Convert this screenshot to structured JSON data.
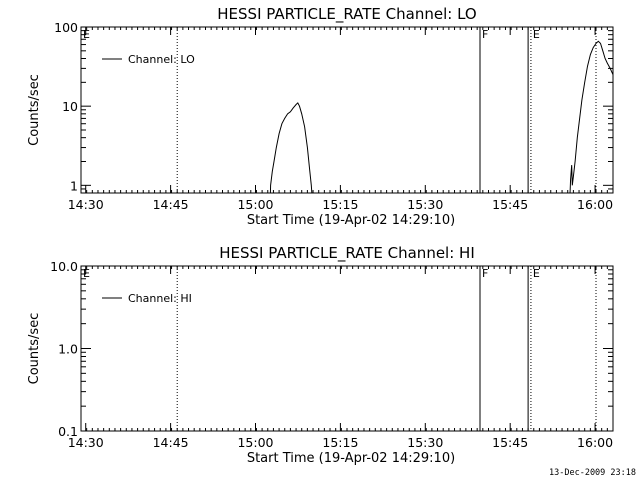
{
  "chart_data": [
    {
      "type": "line",
      "title": "HESSI PARTICLE_RATE Channel: LO",
      "xlabel": "Start Time (19-Apr-02 14:29:10)",
      "ylabel": "Counts/sec",
      "yscale": "log",
      "ylim": [
        0.8,
        100
      ],
      "xlim_minutes": [
        0,
        94
      ],
      "x_tick_labels": [
        "14:30",
        "14:45",
        "15:00",
        "15:15",
        "15:30",
        "15:45",
        "16:00"
      ],
      "y_tick_labels": [
        "1",
        "10",
        "100"
      ],
      "y_ticks": [
        1,
        10,
        100
      ],
      "legend_label": "Channel: LO",
      "legend_position": "top-left",
      "markers": [
        {
          "label": "E",
          "minute": 0,
          "style": "dotted"
        },
        {
          "label": "",
          "minute": 17,
          "style": "dotted"
        },
        {
          "label": "F",
          "minute": 70.5,
          "style": "solid"
        },
        {
          "label": "",
          "minute": 79,
          "style": "solid"
        },
        {
          "label": "E",
          "minute": 79.5,
          "style": "dotted"
        },
        {
          "label": "",
          "minute": 96.5,
          "style": "dotted"
        }
      ],
      "segments": [
        [
          [
            33.4,
            0.5
          ],
          [
            33.5,
            1.0
          ],
          [
            33.8,
            1.5
          ],
          [
            34.1,
            2.0
          ],
          [
            34.5,
            3.0
          ],
          [
            35.0,
            4.5
          ],
          [
            35.5,
            6.0
          ],
          [
            36.0,
            7.0
          ],
          [
            36.5,
            8.0
          ],
          [
            37.0,
            8.5
          ],
          [
            37.5,
            9.5
          ],
          [
            38.0,
            10.5
          ],
          [
            38.3,
            11.0
          ],
          [
            38.6,
            10.0
          ],
          [
            39.0,
            8.0
          ],
          [
            39.5,
            5.5
          ],
          [
            40.0,
            3.0
          ],
          [
            40.4,
            1.6
          ],
          [
            40.7,
            1.0
          ],
          [
            41.0,
            0.5
          ]
        ],
        [
          [
            86.3,
            0.5
          ],
          [
            86.5,
            1.2
          ],
          [
            86.7,
            1.8
          ],
          [
            86.8,
            1.0
          ],
          [
            87.0,
            1.3
          ],
          [
            87.3,
            2.0
          ],
          [
            87.7,
            4.0
          ],
          [
            88.0,
            6.0
          ],
          [
            88.5,
            12.0
          ],
          [
            89.0,
            20.0
          ],
          [
            89.5,
            32.0
          ],
          [
            90.0,
            45.0
          ],
          [
            90.5,
            55.0
          ],
          [
            91.0,
            62.0
          ],
          [
            91.4,
            66.0
          ],
          [
            91.8,
            62.0
          ],
          [
            92.2,
            50.0
          ],
          [
            92.6,
            40.0
          ],
          [
            93.0,
            35.0
          ],
          [
            93.5,
            30.0
          ],
          [
            94.0,
            25.0
          ],
          [
            94.5,
            20.0
          ],
          [
            94.9,
            18.0
          ],
          [
            95.4,
            23.0
          ],
          [
            96.0,
            32.0
          ],
          [
            96.3,
            36.0
          ]
        ]
      ]
    },
    {
      "type": "line",
      "title": "HESSI PARTICLE_RATE Channel: HI",
      "xlabel": "Start Time (19-Apr-02 14:29:10)",
      "ylabel": "Counts/sec",
      "yscale": "log",
      "ylim": [
        0.1,
        10
      ],
      "xlim_minutes": [
        0,
        94
      ],
      "x_tick_labels": [
        "14:30",
        "14:45",
        "15:00",
        "15:15",
        "15:30",
        "15:45",
        "16:00"
      ],
      "y_tick_labels": [
        "0.1",
        "1.0",
        "10.0"
      ],
      "y_ticks": [
        0.1,
        1,
        10
      ],
      "legend_label": "Channel: HI",
      "legend_position": "top-left",
      "markers": [
        {
          "label": "E",
          "minute": 0,
          "style": "dotted"
        },
        {
          "label": "",
          "minute": 17,
          "style": "dotted"
        },
        {
          "label": "F",
          "minute": 70.5,
          "style": "solid"
        },
        {
          "label": "",
          "minute": 79,
          "style": "solid"
        },
        {
          "label": "E",
          "minute": 79.5,
          "style": "dotted"
        },
        {
          "label": "",
          "minute": 96.5,
          "style": "dotted"
        }
      ],
      "segments": []
    }
  ],
  "footer_timestamp": "13-Dec-2009 23:18"
}
